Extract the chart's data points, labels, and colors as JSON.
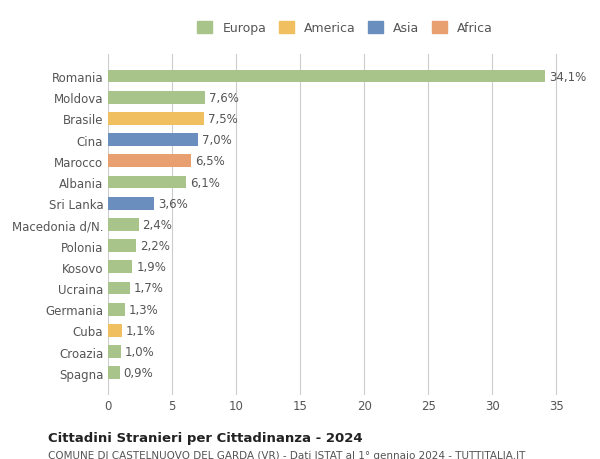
{
  "countries": [
    "Romania",
    "Moldova",
    "Brasile",
    "Cina",
    "Marocco",
    "Albania",
    "Sri Lanka",
    "Macedonia d/N.",
    "Polonia",
    "Kosovo",
    "Ucraina",
    "Germania",
    "Cuba",
    "Croazia",
    "Spagna"
  ],
  "values": [
    34.1,
    7.6,
    7.5,
    7.0,
    6.5,
    6.1,
    3.6,
    2.4,
    2.2,
    1.9,
    1.7,
    1.3,
    1.1,
    1.0,
    0.9
  ],
  "labels": [
    "34,1%",
    "7,6%",
    "7,5%",
    "7,0%",
    "6,5%",
    "6,1%",
    "3,6%",
    "2,4%",
    "2,2%",
    "1,9%",
    "1,7%",
    "1,3%",
    "1,1%",
    "1,0%",
    "0,9%"
  ],
  "colors": [
    "#a8c48a",
    "#a8c48a",
    "#f0c060",
    "#6a8fbf",
    "#e8a070",
    "#a8c48a",
    "#6a8fbf",
    "#a8c48a",
    "#a8c48a",
    "#a8c48a",
    "#a8c48a",
    "#a8c48a",
    "#f0c060",
    "#a8c48a",
    "#a8c48a"
  ],
  "legend": {
    "Europa": "#a8c48a",
    "America": "#f0c060",
    "Asia": "#6a8fbf",
    "Africa": "#e8a070"
  },
  "xlim": [
    0,
    37
  ],
  "xticks": [
    0,
    5,
    10,
    15,
    20,
    25,
    30,
    35
  ],
  "title1": "Cittadini Stranieri per Cittadinanza - 2024",
  "title2": "COMUNE DI CASTELNUOVO DEL GARDA (VR) - Dati ISTAT al 1° gennaio 2024 - TUTTITALIA.IT",
  "bg_color": "#ffffff",
  "grid_color": "#cccccc"
}
